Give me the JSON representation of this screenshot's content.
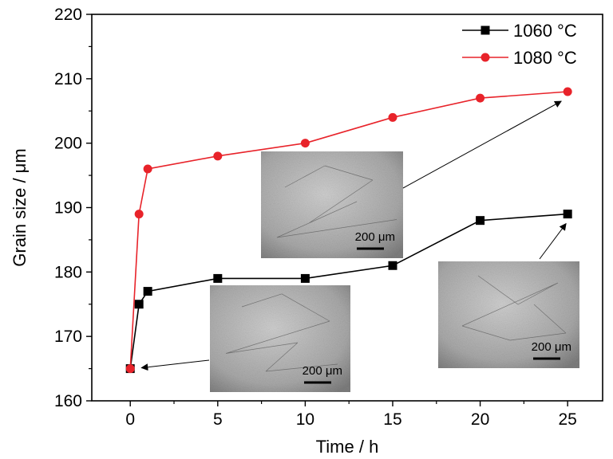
{
  "chart_data": {
    "type": "line",
    "xlabel": "Time / h",
    "ylabel": "Grain size / μm",
    "xlim": [
      -2.2,
      27
    ],
    "ylim": [
      160,
      220
    ],
    "xticks": [
      0,
      5,
      10,
      15,
      20,
      25
    ],
    "yticks": [
      160,
      170,
      180,
      190,
      200,
      210,
      220
    ],
    "grid": false,
    "legend_position": "top-right",
    "series": [
      {
        "name": "1060 °C",
        "color": "#000000",
        "marker": "square",
        "x": [
          0,
          0.5,
          1,
          5,
          10,
          15,
          20,
          25
        ],
        "y": [
          165,
          175,
          177,
          179,
          179,
          181,
          188,
          189
        ]
      },
      {
        "name": "1080 °C",
        "color": "#e8232a",
        "marker": "circle",
        "x": [
          0,
          0.5,
          1,
          5,
          10,
          15,
          20,
          25
        ],
        "y": [
          165,
          189,
          196,
          198,
          200,
          204,
          207,
          208
        ]
      }
    ],
    "insets": [
      {
        "name": "micrograph-initial",
        "scale_label": "200 μm",
        "points_to": {
          "x": 0,
          "y": 165
        }
      },
      {
        "name": "micrograph-1080-25h",
        "scale_label": "200 μm",
        "points_to": {
          "x": 25,
          "y": 208
        }
      },
      {
        "name": "micrograph-1060-25h",
        "scale_label": "200 μm",
        "points_to": {
          "x": 25,
          "y": 189
        }
      }
    ]
  }
}
